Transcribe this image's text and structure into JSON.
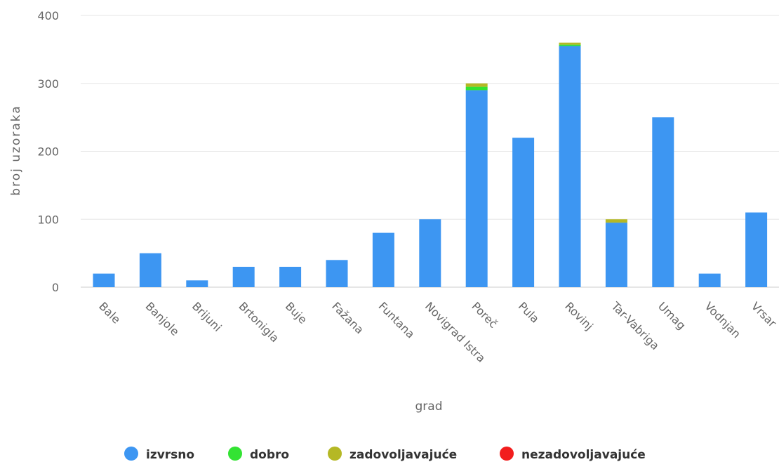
{
  "chart_data": {
    "type": "bar",
    "stacked": true,
    "xlabel": "grad",
    "ylabel": "broj uzoraka",
    "ylim": [
      0,
      400
    ],
    "yticks": [
      0,
      100,
      200,
      300,
      400
    ],
    "grid": true,
    "legend_position": "bottom-center",
    "categories": [
      "Bale",
      "Banjole",
      "Brijuni",
      "Brtonigla",
      "Buje",
      "Fažana",
      "Funtana",
      "Novigrad Istra",
      "Poreč",
      "Pula",
      "Rovinj",
      "Tar-Vabriga",
      "Umag",
      "Vodnjan",
      "Vrsar"
    ],
    "series": [
      {
        "name": "izvrsno",
        "color": "#3d96f2",
        "values": [
          20,
          50,
          10,
          30,
          30,
          40,
          80,
          100,
          290,
          220,
          355,
          95,
          250,
          20,
          110
        ]
      },
      {
        "name": "dobro",
        "color": "#33e333",
        "values": [
          0,
          0,
          0,
          0,
          0,
          0,
          0,
          0,
          5,
          0,
          2,
          0,
          0,
          0,
          0
        ]
      },
      {
        "name": "zadovoljavajuće",
        "color": "#b5b825",
        "values": [
          0,
          0,
          0,
          0,
          0,
          0,
          0,
          0,
          5,
          0,
          3,
          5,
          0,
          0,
          0
        ]
      },
      {
        "name": "nezadovoljavajuće",
        "color": "#f21d1d",
        "values": [
          0,
          0,
          0,
          0,
          0,
          0,
          0,
          0,
          0,
          0,
          0,
          0,
          0,
          0,
          0
        ]
      }
    ]
  }
}
